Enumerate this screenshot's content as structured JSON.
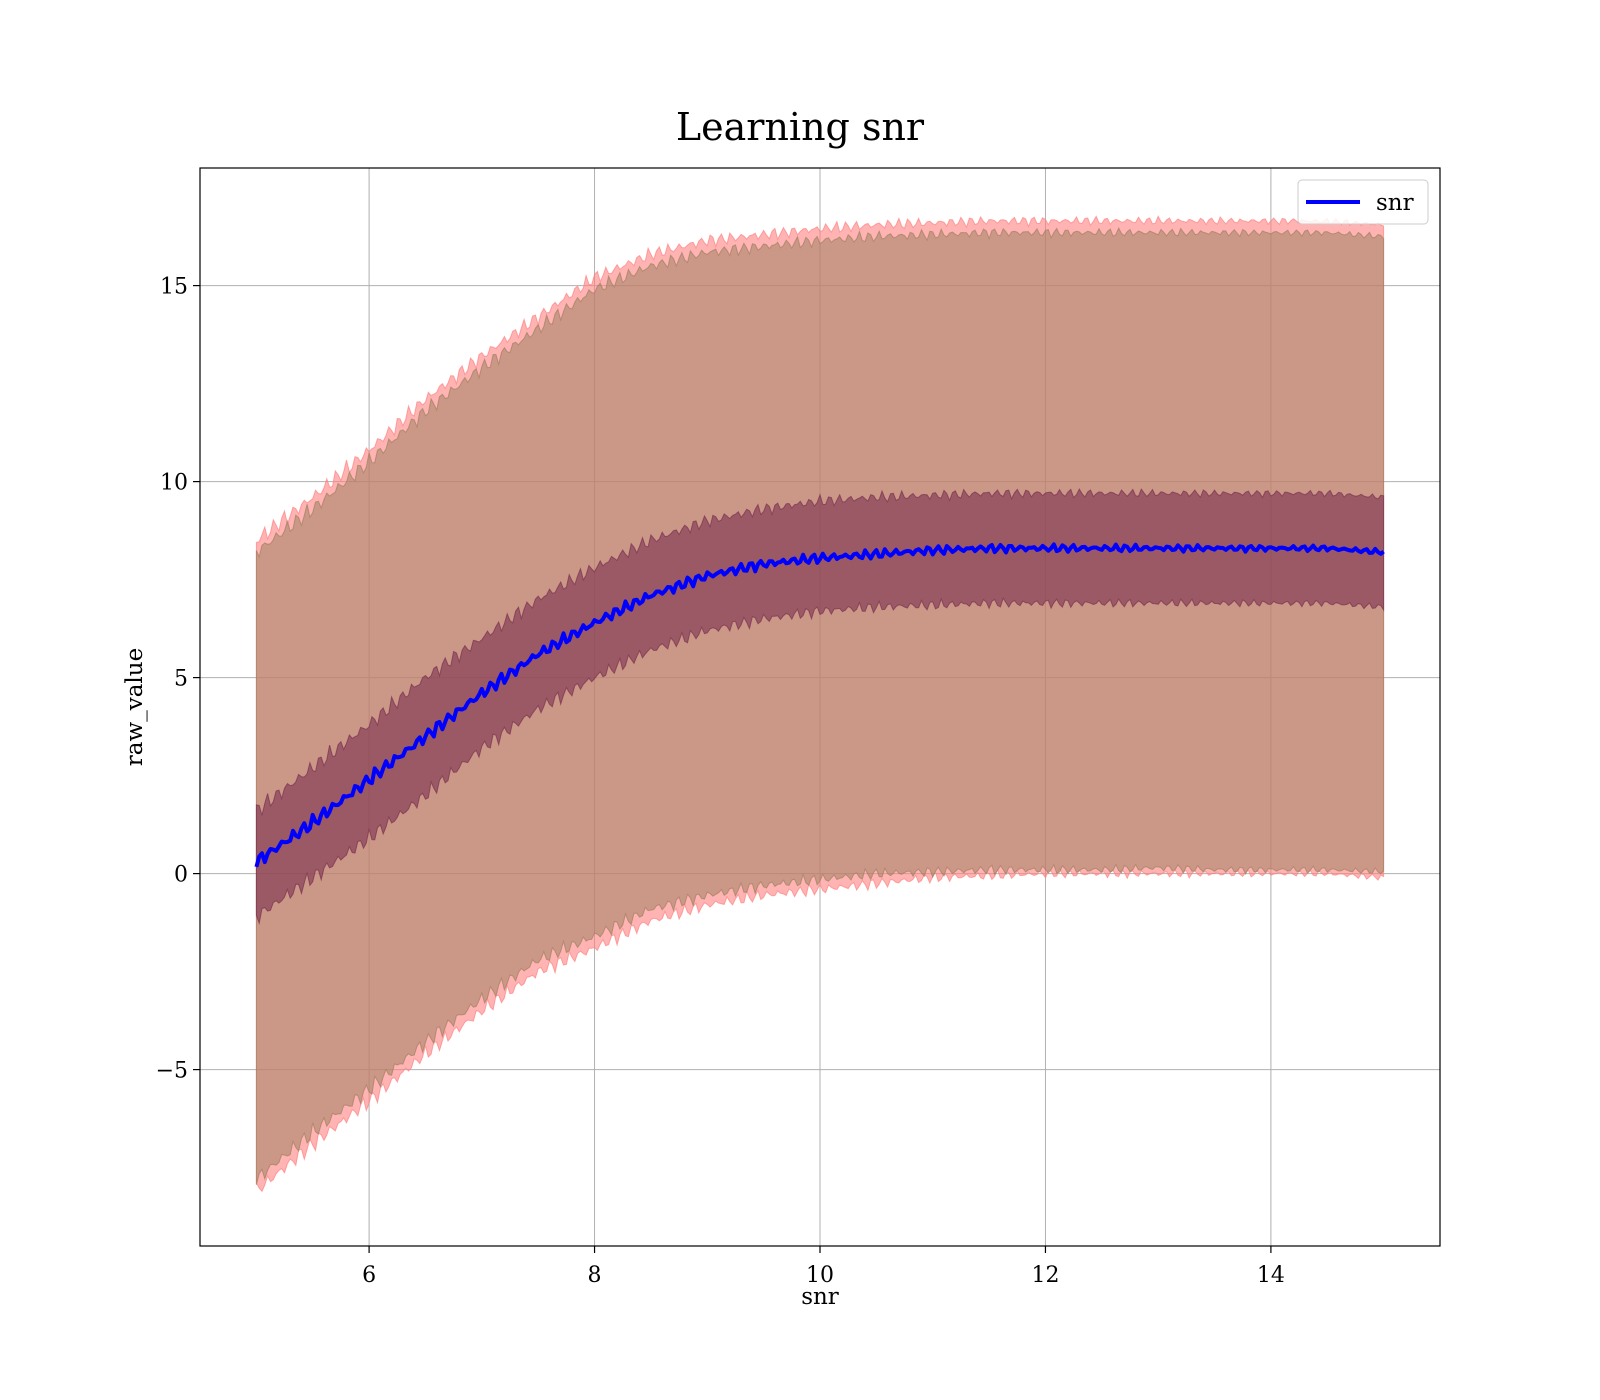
{
  "chart_data": {
    "type": "line",
    "title": "Learning snr",
    "xlabel": "snr",
    "ylabel": "raw_value",
    "xlim": [
      4.5,
      15.5
    ],
    "ylim": [
      -9.5,
      18
    ],
    "xticks": [
      6,
      8,
      10,
      12,
      14
    ],
    "yticks": [
      -5,
      0,
      5,
      10,
      15
    ],
    "xtick_labels": [
      "6",
      "8",
      "10",
      "12",
      "14"
    ],
    "ytick_labels": [
      "−5",
      "0",
      "5",
      "10",
      "15"
    ],
    "grid": true,
    "legend": {
      "position": "upper-right",
      "entries": [
        "snr"
      ]
    },
    "x": [
      5.0,
      5.5,
      6.0,
      6.5,
      7.0,
      7.5,
      8.0,
      8.5,
      9.0,
      9.5,
      10.0,
      10.5,
      11.0,
      11.5,
      12.0,
      12.5,
      13.0,
      13.5,
      14.0,
      14.5,
      15.0
    ],
    "series": [
      {
        "name": "snr",
        "color": "#0000ff",
        "values": [
          0.3,
          1.3,
          2.4,
          3.5,
          4.6,
          5.6,
          6.4,
          7.1,
          7.6,
          7.9,
          8.05,
          8.15,
          8.25,
          8.3,
          8.3,
          8.3,
          8.3,
          8.3,
          8.3,
          8.3,
          8.2
        ]
      },
      {
        "color": "#7a3050",
        "fill_alpha": 0.6,
        "lower": [
          -1.1,
          -0.1,
          0.9,
          2.0,
          3.2,
          4.2,
          5.0,
          5.7,
          6.2,
          6.5,
          6.7,
          6.8,
          6.85,
          6.9,
          6.9,
          6.9,
          6.9,
          6.9,
          6.9,
          6.9,
          6.8
        ],
        "upper": [
          1.6,
          2.7,
          3.8,
          5.0,
          6.0,
          7.0,
          7.8,
          8.5,
          9.0,
          9.3,
          9.5,
          9.6,
          9.65,
          9.7,
          9.7,
          9.7,
          9.7,
          9.7,
          9.7,
          9.7,
          9.6
        ]
      },
      {
        "color": "#a08060",
        "fill_alpha": 0.55,
        "lower": [
          -7.8,
          -6.6,
          -5.5,
          -4.3,
          -3.2,
          -2.2,
          -1.6,
          -0.9,
          -0.55,
          -0.3,
          -0.15,
          0.0,
          0.05,
          0.1,
          0.1,
          0.1,
          0.15,
          0.1,
          0.1,
          0.1,
          0.05
        ],
        "upper": [
          8.2,
          9.3,
          10.5,
          11.8,
          12.9,
          13.9,
          14.9,
          15.5,
          15.85,
          16.0,
          16.15,
          16.25,
          16.3,
          16.35,
          16.35,
          16.35,
          16.35,
          16.35,
          16.35,
          16.35,
          16.25
        ]
      },
      {
        "color": "#ff8080",
        "fill_alpha": 0.6,
        "lower": [
          -8.1,
          -6.9,
          -5.8,
          -4.6,
          -3.5,
          -2.5,
          -1.9,
          -1.2,
          -0.8,
          -0.55,
          -0.4,
          -0.25,
          -0.1,
          -0.05,
          0.0,
          0.0,
          0.0,
          0.0,
          0.0,
          0.0,
          -0.1
        ],
        "upper": [
          8.5,
          9.6,
          10.8,
          12.1,
          13.2,
          14.2,
          15.2,
          15.8,
          16.15,
          16.3,
          16.45,
          16.55,
          16.6,
          16.65,
          16.65,
          16.65,
          16.65,
          16.65,
          16.65,
          16.65,
          16.55
        ]
      }
    ]
  }
}
